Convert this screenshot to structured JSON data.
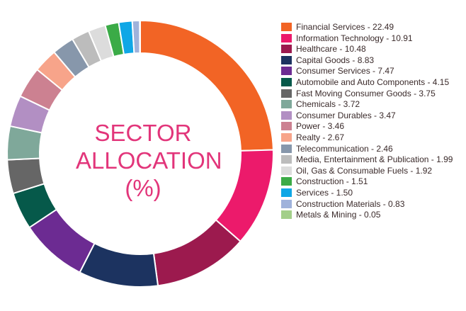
{
  "chart_data": {
    "type": "pie",
    "title": "SECTOR ALLOCATION (%)",
    "title_lines": [
      "SECTOR",
      "ALLOCATION",
      "(%)"
    ],
    "legend_position": "right",
    "slices": [
      {
        "label": "Financial Services",
        "value": 22.49,
        "color": "#f26425"
      },
      {
        "label": "Information Technology",
        "value": 10.91,
        "color": "#ec1a6b"
      },
      {
        "label": "Healthcare",
        "value": 10.48,
        "color": "#9c1a4e"
      },
      {
        "label": "Capital Goods",
        "value": 8.83,
        "color": "#1c3360"
      },
      {
        "label": "Consumer Services",
        "value": 7.47,
        "color": "#6c2b92"
      },
      {
        "label": "Automobile and Auto Components",
        "value": 4.15,
        "color": "#06594a"
      },
      {
        "label": "Fast Moving Consumer Goods",
        "value": 3.75,
        "color": "#666666"
      },
      {
        "label": "Chemicals",
        "value": 3.72,
        "color": "#7fa89a"
      },
      {
        "label": "Consumer Durables",
        "value": 3.47,
        "color": "#b28fc3"
      },
      {
        "label": "Power",
        "value": 3.46,
        "color": "#cc8191"
      },
      {
        "label": "Realty",
        "value": 2.67,
        "color": "#f7a48a"
      },
      {
        "label": "Telecommunication",
        "value": 2.46,
        "color": "#8797ab"
      },
      {
        "label": "Media, Entertainment & Publication",
        "value": 1.99,
        "color": "#bcbcbc"
      },
      {
        "label": "Oil, Gas & Consumable Fuels",
        "value": 1.92,
        "color": "#dcdcdc"
      },
      {
        "label": "Construction",
        "value": 1.51,
        "color": "#3bab47"
      },
      {
        "label": "Services",
        "value": 1.5,
        "color": "#0fa7e6"
      },
      {
        "label": "Construction Materials",
        "value": 0.83,
        "color": "#9fb2db"
      },
      {
        "label": "Metals & Mining",
        "value": 0.05,
        "color": "#a3cf8a"
      }
    ],
    "legend_text": [
      "Financial Services - 22.49",
      "Information Technology - 10.91",
      "Healthcare - 10.48",
      "Capital Goods - 8.83",
      "Consumer Services - 7.47",
      "Automobile and Auto Components - 4.15",
      "Fast Moving Consumer Goods - 3.75",
      "Chemicals - 3.72",
      "Consumer Durables - 3.47",
      "Power - 3.46",
      "Realty - 2.67",
      "Telecommunication - 2.46",
      "Media, Entertainment & Publication - 1.99",
      "Oil, Gas & Consumable Fuels - 1.92",
      "Construction - 1.51",
      "Services - 1.50",
      "Construction Materials - 0.83",
      "Metals & Mining - 0.05"
    ]
  }
}
